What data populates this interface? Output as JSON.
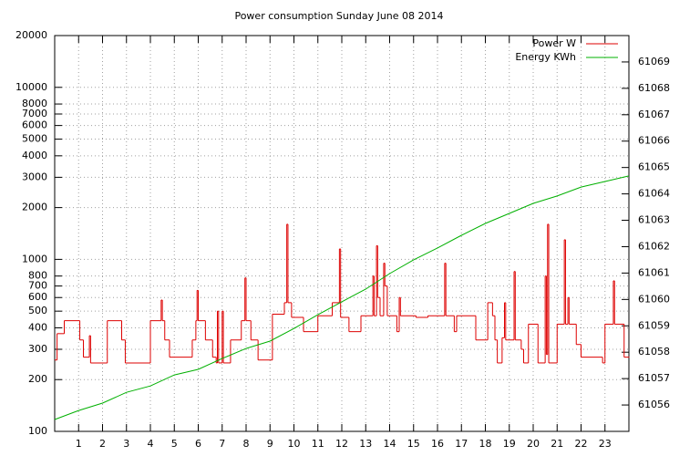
{
  "chart_data": {
    "type": "line",
    "title": "Power consumption Sunday June 08 2014",
    "xlim": [
      0,
      24
    ],
    "xticks": [
      1,
      2,
      3,
      4,
      5,
      6,
      7,
      8,
      9,
      10,
      11,
      12,
      13,
      14,
      15,
      16,
      17,
      18,
      19,
      20,
      21,
      22,
      23
    ],
    "ylim": [
      100,
      20000
    ],
    "yscale": "log",
    "yticks": [
      100,
      200,
      300,
      400,
      500,
      600,
      700,
      800,
      1000,
      2000,
      3000,
      4000,
      5000,
      6000,
      7000,
      8000,
      10000,
      20000
    ],
    "y2lim": [
      61055,
      61070
    ],
    "y2ticks": [
      61056,
      61057,
      61058,
      61059,
      61060,
      61061,
      61062,
      61063,
      61064,
      61065,
      61066,
      61067,
      61068,
      61069
    ],
    "grid": true,
    "legend": "top-right",
    "series": [
      {
        "name": "Power W",
        "color": "#dd0000",
        "style": "steps",
        "x": [
          0,
          0.1,
          0.4,
          1.05,
          1.2,
          1.45,
          1.5,
          2.2,
          2.8,
          2.95,
          4.0,
          4.45,
          4.5,
          4.6,
          4.8,
          5.75,
          5.9,
          5.95,
          6.0,
          6.3,
          6.6,
          6.75,
          6.8,
          6.85,
          7.0,
          7.05,
          7.35,
          7.8,
          7.95,
          8.0,
          8.2,
          8.5,
          9.1,
          9.6,
          9.7,
          9.75,
          9.9,
          10.4,
          11.0,
          11.6,
          11.9,
          11.95,
          12.3,
          12.8,
          13.3,
          13.35,
          13.45,
          13.5,
          13.6,
          13.75,
          13.8,
          13.9,
          14.3,
          14.4,
          14.45,
          15.1,
          15.6,
          16.3,
          16.35,
          16.7,
          16.8,
          17.6,
          18.1,
          18.3,
          18.4,
          18.5,
          18.7,
          18.8,
          18.85,
          19.2,
          19.25,
          19.5,
          19.6,
          19.8,
          20.2,
          20.5,
          20.55,
          20.6,
          20.65,
          21.0,
          21.3,
          21.35,
          21.45,
          21.5,
          21.8,
          22.0,
          22.9,
          23.0,
          23.35,
          23.4,
          23.8,
          24
        ],
        "values": [
          260,
          370,
          440,
          340,
          270,
          360,
          250,
          440,
          340,
          250,
          440,
          580,
          440,
          340,
          270,
          340,
          440,
          660,
          440,
          340,
          270,
          250,
          500,
          250,
          500,
          250,
          340,
          440,
          780,
          440,
          340,
          260,
          480,
          560,
          1600,
          560,
          460,
          380,
          470,
          560,
          1150,
          460,
          380,
          470,
          800,
          470,
          1200,
          600,
          470,
          950,
          700,
          470,
          380,
          600,
          470,
          460,
          470,
          950,
          470,
          380,
          470,
          340,
          560,
          470,
          340,
          250,
          350,
          560,
          340,
          850,
          340,
          300,
          250,
          420,
          250,
          800,
          280,
          1600,
          250,
          420,
          1300,
          420,
          600,
          420,
          320,
          270,
          250,
          420,
          750,
          420,
          270,
          270
        ]
      },
      {
        "name": "Energy KWh",
        "color": "#00b000",
        "axis": "y2",
        "x": [
          0,
          1,
          2,
          3,
          4,
          5,
          6,
          7,
          8,
          9,
          10,
          11,
          12,
          13,
          14,
          15,
          16,
          17,
          18,
          19,
          20,
          21,
          22,
          23,
          24
        ],
        "values": [
          61055.45,
          61055.79,
          61056.07,
          61056.48,
          61056.72,
          61057.14,
          61057.35,
          61057.76,
          61058.14,
          61058.42,
          61058.9,
          61059.42,
          61059.91,
          61060.39,
          61060.98,
          61061.5,
          61061.95,
          61062.43,
          61062.88,
          61063.26,
          61063.64,
          61063.92,
          61064.26,
          61064.47,
          61064.68
        ]
      }
    ]
  }
}
